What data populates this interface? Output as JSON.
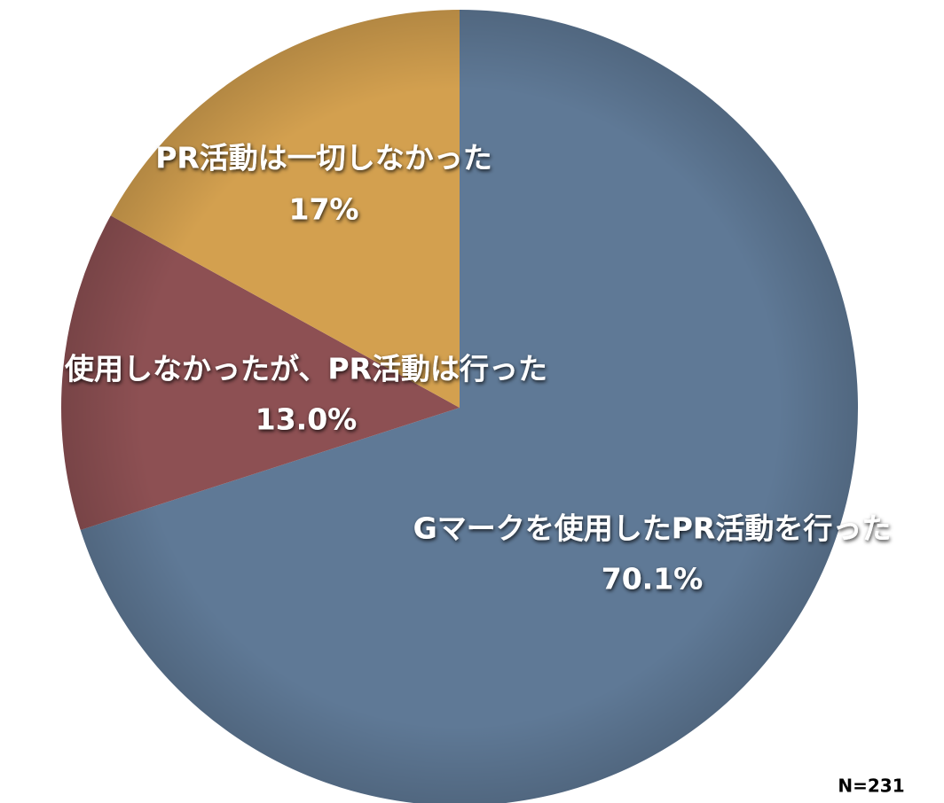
{
  "chart_data": {
    "type": "pie",
    "categories": [
      "Gマークを使用したPR活動を行った",
      "使用しなかったが、PR活動は行った",
      "PR活動は一切しなかった"
    ],
    "values": [
      70.1,
      13.0,
      17
    ],
    "value_labels": [
      "70.1%",
      "13.0%",
      "17%"
    ],
    "colors": [
      "#5f7996",
      "#8d5053",
      "#d3a04f"
    ],
    "annotation": "N=231"
  }
}
